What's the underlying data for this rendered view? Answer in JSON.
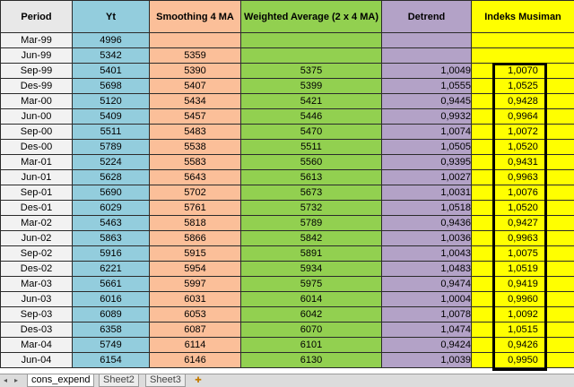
{
  "headers": {
    "period": "Period",
    "yt": "Yt",
    "sma": "Smoothing 4 MA",
    "wa": "Weighted Average (2 x 4 MA)",
    "detrend": "Detrend",
    "indeks": "Indeks Musiman"
  },
  "rows": [
    {
      "period": "Mar-99",
      "yt": "4996",
      "sma": "",
      "wa": "",
      "detrend": "",
      "indeks": ""
    },
    {
      "period": "Jun-99",
      "yt": "5342",
      "sma": "5359",
      "wa": "",
      "detrend": "",
      "indeks": ""
    },
    {
      "period": "Sep-99",
      "yt": "5401",
      "sma": "5390",
      "wa": "5375",
      "detrend": "1,0049",
      "indeks": "1,0070"
    },
    {
      "period": "Des-99",
      "yt": "5698",
      "sma": "5407",
      "wa": "5399",
      "detrend": "1,0555",
      "indeks": "1,0525"
    },
    {
      "period": "Mar-00",
      "yt": "5120",
      "sma": "5434",
      "wa": "5421",
      "detrend": "0,9445",
      "indeks": "0,9428"
    },
    {
      "period": "Jun-00",
      "yt": "5409",
      "sma": "5457",
      "wa": "5446",
      "detrend": "0,9932",
      "indeks": "0,9964"
    },
    {
      "period": "Sep-00",
      "yt": "5511",
      "sma": "5483",
      "wa": "5470",
      "detrend": "1,0074",
      "indeks": "1,0072"
    },
    {
      "period": "Des-00",
      "yt": "5789",
      "sma": "5538",
      "wa": "5511",
      "detrend": "1,0505",
      "indeks": "1,0520"
    },
    {
      "period": "Mar-01",
      "yt": "5224",
      "sma": "5583",
      "wa": "5560",
      "detrend": "0,9395",
      "indeks": "0,9431"
    },
    {
      "period": "Jun-01",
      "yt": "5628",
      "sma": "5643",
      "wa": "5613",
      "detrend": "1,0027",
      "indeks": "0,9963"
    },
    {
      "period": "Sep-01",
      "yt": "5690",
      "sma": "5702",
      "wa": "5673",
      "detrend": "1,0031",
      "indeks": "1,0076"
    },
    {
      "period": "Des-01",
      "yt": "6029",
      "sma": "5761",
      "wa": "5732",
      "detrend": "1,0518",
      "indeks": "1,0520"
    },
    {
      "period": "Mar-02",
      "yt": "5463",
      "sma": "5818",
      "wa": "5789",
      "detrend": "0,9436",
      "indeks": "0,9427"
    },
    {
      "period": "Jun-02",
      "yt": "5863",
      "sma": "5866",
      "wa": "5842",
      "detrend": "1,0036",
      "indeks": "0,9963"
    },
    {
      "period": "Sep-02",
      "yt": "5916",
      "sma": "5915",
      "wa": "5891",
      "detrend": "1,0043",
      "indeks": "1,0075"
    },
    {
      "period": "Des-02",
      "yt": "6221",
      "sma": "5954",
      "wa": "5934",
      "detrend": "1,0483",
      "indeks": "1,0519"
    },
    {
      "period": "Mar-03",
      "yt": "5661",
      "sma": "5997",
      "wa": "5975",
      "detrend": "0,9474",
      "indeks": "0,9419"
    },
    {
      "period": "Jun-03",
      "yt": "6016",
      "sma": "6031",
      "wa": "6014",
      "detrend": "1,0004",
      "indeks": "0,9960"
    },
    {
      "period": "Sep-03",
      "yt": "6089",
      "sma": "6053",
      "wa": "6042",
      "detrend": "1,0078",
      "indeks": "1,0092"
    },
    {
      "period": "Des-03",
      "yt": "6358",
      "sma": "6087",
      "wa": "6070",
      "detrend": "1,0474",
      "indeks": "1,0515"
    },
    {
      "period": "Mar-04",
      "yt": "5749",
      "sma": "6114",
      "wa": "6101",
      "detrend": "0,9424",
      "indeks": "0,9426"
    },
    {
      "period": "Jun-04",
      "yt": "6154",
      "sma": "6146",
      "wa": "6130",
      "detrend": "1,0039",
      "indeks": "0,9950"
    }
  ],
  "sheet_tabs": {
    "nav_left": "◂",
    "nav_right": "▸",
    "tabs": [
      "cons_expend",
      "Sheet2",
      "Sheet3"
    ],
    "active_index": 0,
    "new_sheet_icon": "new-sheet-icon",
    "new_sheet_glyph": "✚"
  },
  "colors": {
    "period_header": "#e8e8e8",
    "yt": "#93cddd",
    "smoothing": "#fbbf99",
    "weighted": "#92d050",
    "detrend": "#b3a2c7",
    "indeks": "#ffff00"
  }
}
